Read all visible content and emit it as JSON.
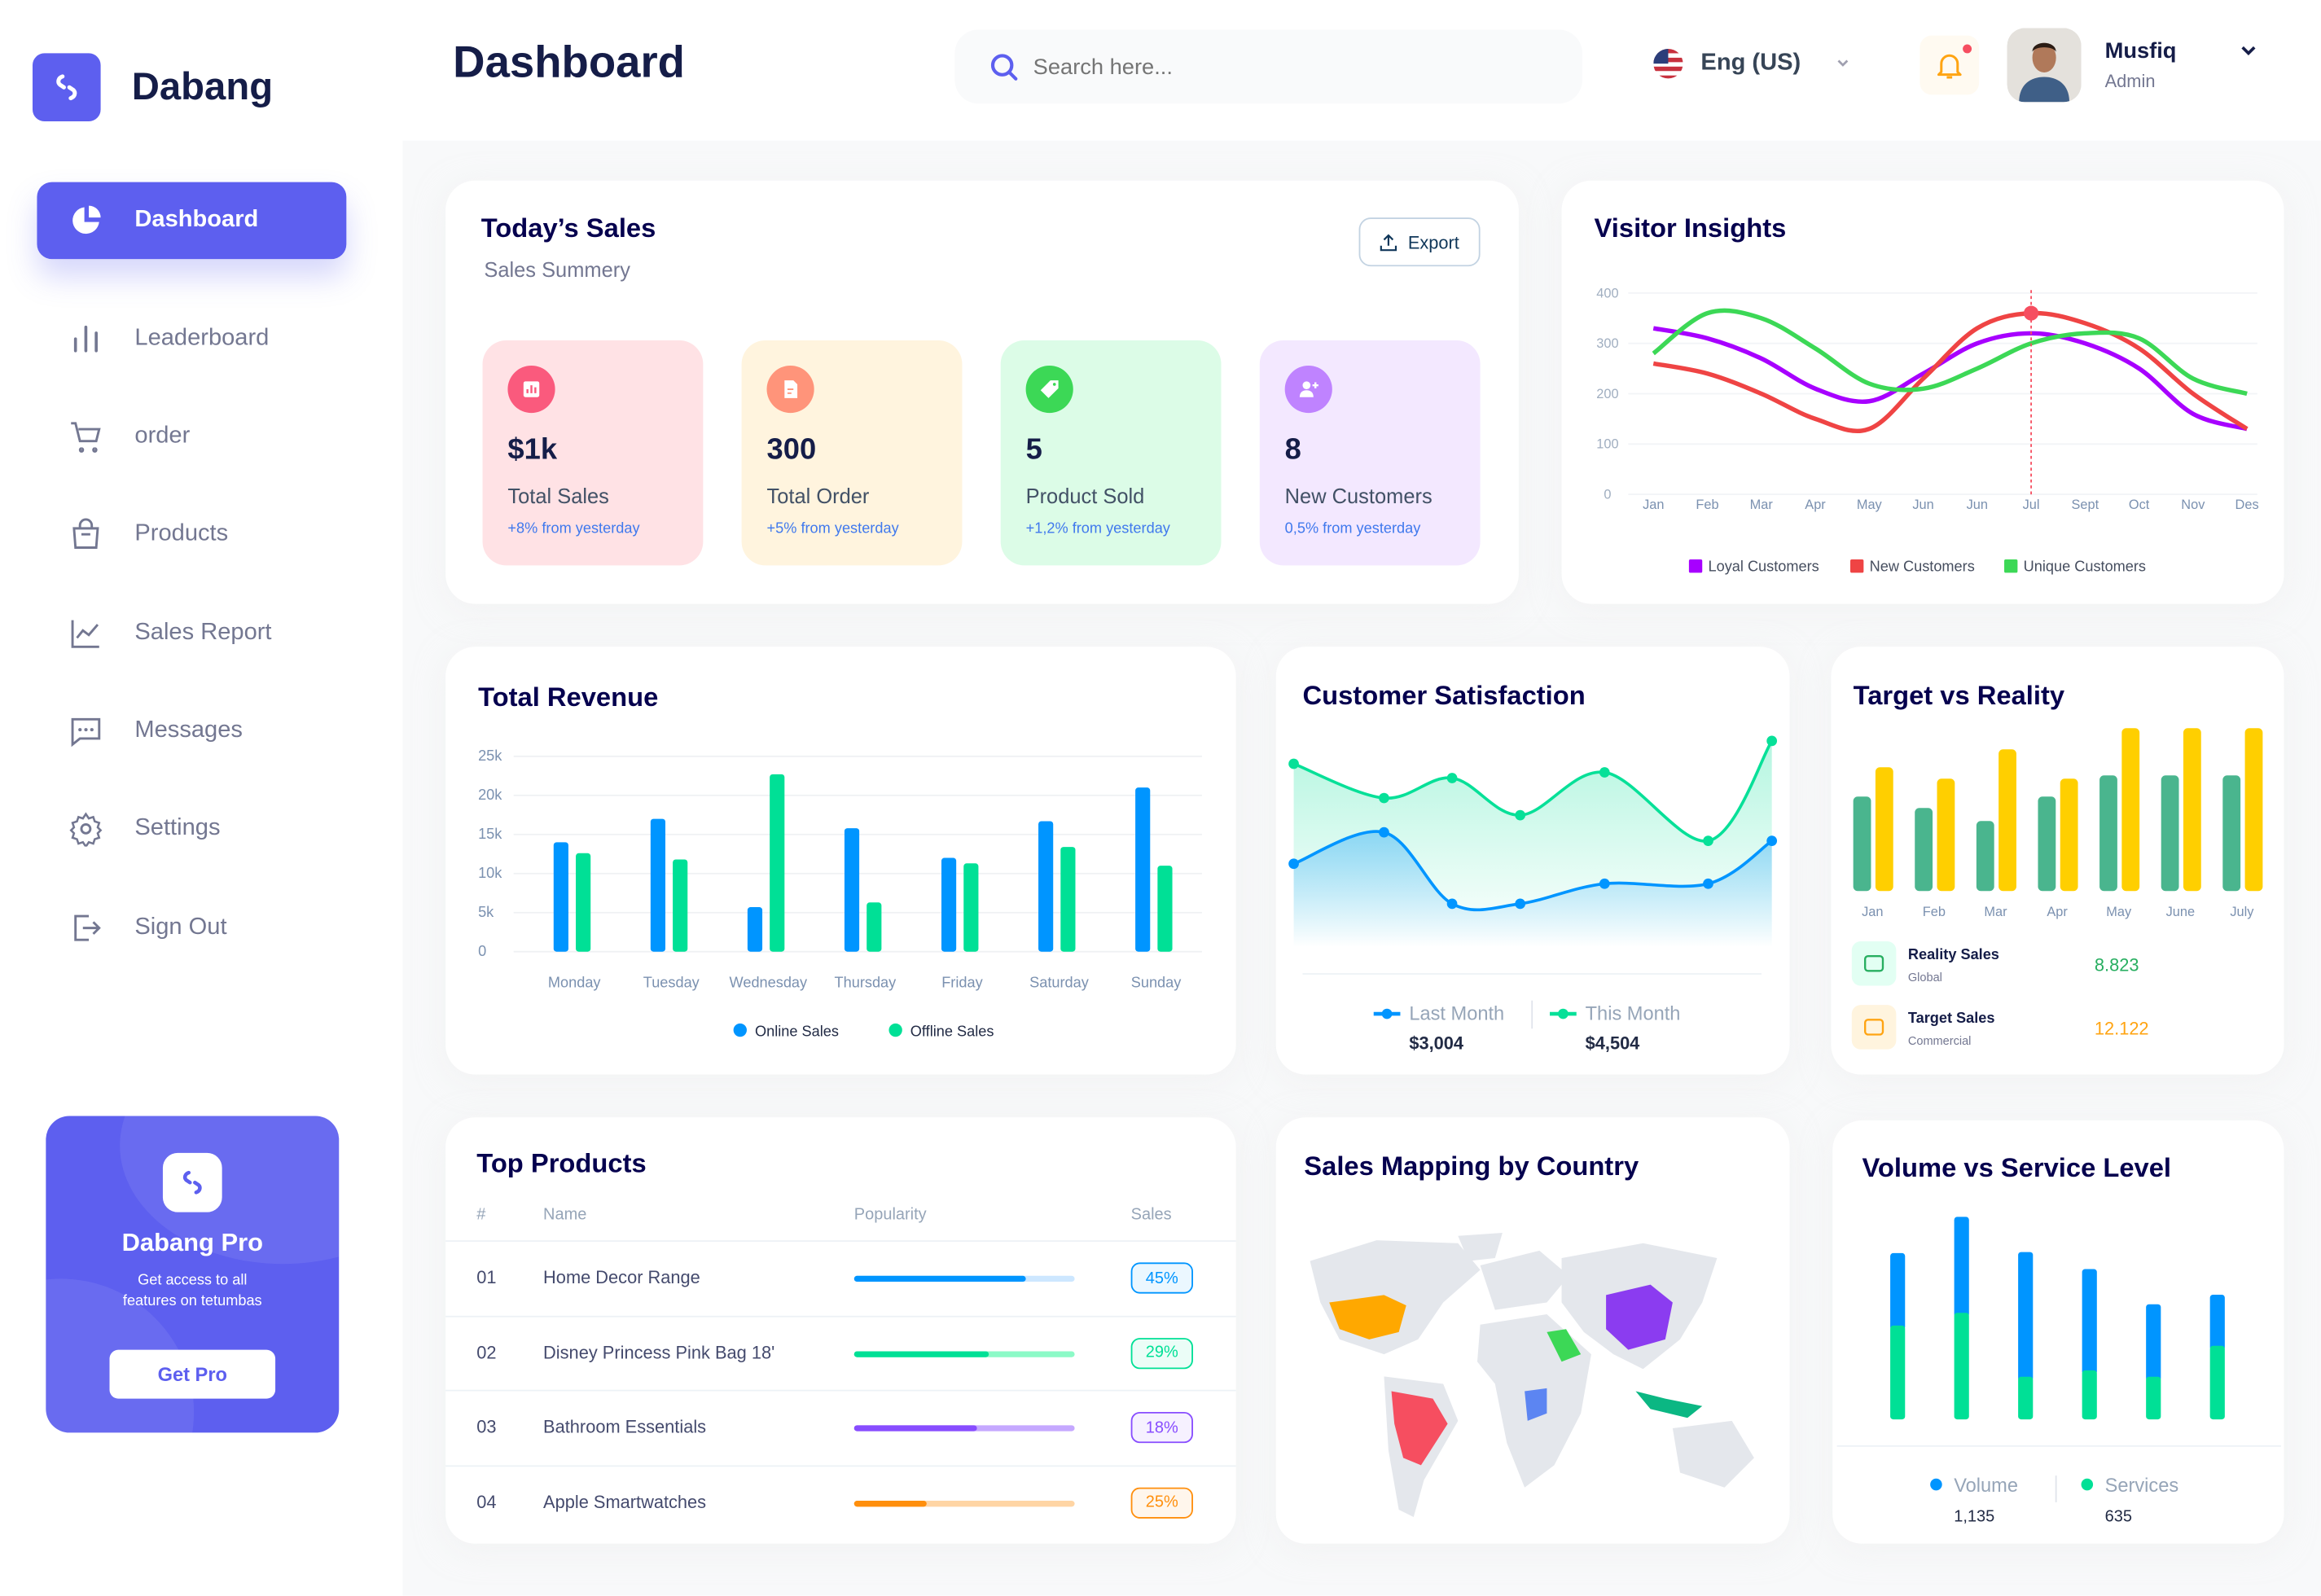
{
  "app": {
    "name": "Dabang",
    "logo_icon": "dabang-logo-icon"
  },
  "header": {
    "title": "Dashboard",
    "search_placeholder": "Search here...",
    "language": "Eng (US)",
    "user_name": "Musfiq",
    "user_role": "Admin",
    "has_notification": true
  },
  "sidebar": {
    "items": [
      {
        "label": "Dashboard",
        "icon": "pie-chart-icon",
        "active": true
      },
      {
        "label": "Leaderboard",
        "icon": "bar-chart-icon"
      },
      {
        "label": "order",
        "icon": "cart-icon"
      },
      {
        "label": "Products",
        "icon": "shopping-bag-icon"
      },
      {
        "label": "Sales Report",
        "icon": "line-chart-icon"
      },
      {
        "label": "Messages",
        "icon": "message-icon"
      },
      {
        "label": "Settings",
        "icon": "gear-icon"
      },
      {
        "label": "Sign Out",
        "icon": "sign-out-icon"
      }
    ],
    "promo": {
      "title": "Dabang Pro",
      "text1": "Get access to all",
      "text2": "features on tetumbas",
      "button": "Get Pro"
    }
  },
  "todays_sales": {
    "title": "Today’s Sales",
    "subtitle": "Sales Summery",
    "export": "Export",
    "stats": [
      {
        "value": "$1k",
        "label": "Total Sales",
        "delta": "+8% from yesterday",
        "bg": "#ffe2e5",
        "icon_bg": "#fa5a7d",
        "icon": "chart-icon"
      },
      {
        "value": "300",
        "label": "Total Order",
        "delta": "+5% from yesterday",
        "bg": "#fff4de",
        "icon_bg": "#ff947a",
        "icon": "document-icon"
      },
      {
        "value": "5",
        "label": "Product Sold",
        "delta": "+1,2% from yesterday",
        "bg": "#dcfce7",
        "icon_bg": "#3cd856",
        "icon": "tag-icon"
      },
      {
        "value": "8",
        "label": "New Customers",
        "delta": "0,5% from yesterday",
        "bg": "#f3e8ff",
        "icon_bg": "#bf83ff",
        "icon": "add-user-icon"
      }
    ]
  },
  "chart_data": [
    {
      "id": "visitor",
      "type": "line",
      "title": "Visitor Insights",
      "categories": [
        "Jan",
        "Feb",
        "Mar",
        "Apr",
        "May",
        "Jun",
        "Jun",
        "Jul",
        "Sept",
        "Oct",
        "Nov",
        "Des"
      ],
      "ylim": [
        0,
        400
      ],
      "yticks": [
        "0",
        "100",
        "200",
        "300",
        "400"
      ],
      "grid": true,
      "legend": "bottom",
      "highlight": {
        "series": "New Customers",
        "category": "Jul"
      },
      "series": [
        {
          "name": "Loyal Customers",
          "color": "#a700ff",
          "values": [
            330,
            310,
            270,
            210,
            185,
            240,
            300,
            320,
            300,
            250,
            160,
            130
          ]
        },
        {
          "name": "New Customers",
          "color": "#ef4444",
          "values": [
            260,
            240,
            200,
            150,
            130,
            230,
            330,
            360,
            340,
            290,
            200,
            130
          ]
        },
        {
          "name": "Unique Customers",
          "color": "#3cd856",
          "values": [
            280,
            360,
            350,
            290,
            220,
            210,
            250,
            300,
            320,
            310,
            230,
            200
          ]
        }
      ]
    },
    {
      "id": "revenue",
      "type": "bar",
      "title": "Total Revenue",
      "categories": [
        "Monday",
        "Tuesday",
        "Wednesday",
        "Thursday",
        "Friday",
        "Saturday",
        "Sunday"
      ],
      "ylim": [
        0,
        25000
      ],
      "yticks": [
        "0",
        "5k",
        "10k",
        "15k",
        "20k",
        "25k"
      ],
      "grid": true,
      "legend": "bottom",
      "series": [
        {
          "name": "Online Sales",
          "color": "#0095ff",
          "values": [
            14000,
            17000,
            5700,
            15800,
            12000,
            16700,
            21000
          ]
        },
        {
          "name": "Offline Sales",
          "color": "#00e096",
          "values": [
            12600,
            11800,
            22700,
            6300,
            11300,
            13400,
            11000
          ]
        }
      ]
    },
    {
      "id": "satisfaction",
      "type": "area",
      "title": "Customer Satisfaction",
      "legend": "bottom",
      "series": [
        {
          "name": "Last Month",
          "color": "#0095ff",
          "total": "$3,004",
          "values": [
            3.7,
            4.8,
            2.3,
            2.3,
            3.0,
            3.0,
            4.5
          ]
        },
        {
          "name": "This Month",
          "color": "#07e098",
          "total": "$4,504",
          "values": [
            7.2,
            6.0,
            6.7,
            5.4,
            6.9,
            4.5,
            8.0
          ]
        }
      ]
    },
    {
      "id": "target",
      "type": "bar",
      "title": "Target vs Reality",
      "categories": [
        "Jan",
        "Feb",
        "Mar",
        "Apr",
        "May",
        "June",
        "July"
      ],
      "series": [
        {
          "name": "Reality Sales",
          "sub": "Global",
          "color": "#4ab58e",
          "total": "8.823",
          "total_color": "#27ae60",
          "icon": "shopping-bag-icon",
          "icon_bg": "#e2fff3",
          "values": [
            5.8,
            5.1,
            4.3,
            5.8,
            7.1,
            7.1,
            7.1
          ]
        },
        {
          "name": "Target Sales",
          "sub": "Commercial",
          "color": "#ffcf00",
          "total": "12.122",
          "total_color": "#ffa412",
          "icon": "ticket-icon",
          "icon_bg": "#fff4de",
          "values": [
            7.6,
            6.9,
            8.7,
            6.9,
            10,
            10,
            10
          ]
        }
      ]
    },
    {
      "id": "volume",
      "type": "stacked-bar",
      "title": "Volume vs Service Level",
      "legend": "bottom",
      "series": [
        {
          "name": "Volume",
          "color": "#0095ff",
          "total": "1,135",
          "values": [
            68,
            90,
            117,
            95,
            68,
            48
          ]
        },
        {
          "name": "Services",
          "color": "#00e096",
          "total": "635",
          "values": [
            88,
            100,
            40,
            46,
            40,
            69
          ]
        }
      ]
    }
  ],
  "top_products": {
    "title": "Top Products",
    "columns": [
      "#",
      "Name",
      "Popularity",
      "Sales"
    ],
    "rows": [
      {
        "num": "01",
        "name": "Home Decor Range",
        "popularity": 0.78,
        "sales": "45%",
        "color": "#0095ff",
        "track": "#cde7ff"
      },
      {
        "num": "02",
        "name": "Disney Princess Pink Bag 18'",
        "popularity": 0.61,
        "sales": "29%",
        "color": "#00e096",
        "track": "#8cfac7"
      },
      {
        "num": "03",
        "name": "Bathroom Essentials",
        "popularity": 0.56,
        "sales": "18%",
        "color": "#884dff",
        "track": "#c5a8ff"
      },
      {
        "num": "04",
        "name": "Apple Smartwatches",
        "popularity": 0.33,
        "sales": "25%",
        "color": "#ff8f0d",
        "track": "#ffd5a4"
      }
    ]
  },
  "sales_map": {
    "title": "Sales Mapping by Country",
    "highlighted": [
      {
        "region": "United States",
        "color": "#ffa800"
      },
      {
        "region": "Brazil",
        "color": "#f64e60"
      },
      {
        "region": "Saudi Arabia",
        "color": "#3cd856"
      },
      {
        "region": "DR Congo",
        "color": "#5c85f2"
      },
      {
        "region": "China",
        "color": "#8b3cf0"
      },
      {
        "region": "Indonesia",
        "color": "#0bb783"
      }
    ]
  }
}
